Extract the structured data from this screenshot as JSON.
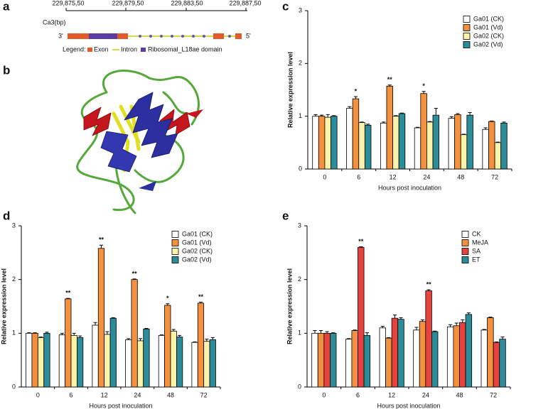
{
  "panel_labels": [
    "a",
    "b",
    "c",
    "d",
    "e"
  ],
  "gene_structure": {
    "ticks": [
      "229,875,50",
      "229,879,50",
      "229,883,50",
      "229,887,50"
    ],
    "axis_label": "Ca3(bp)",
    "end_3": "3'",
    "end_5": "5'",
    "legend_title": "Legend:",
    "legend": [
      "Exon",
      "Intron",
      "Ribosomal_L18ae domain"
    ]
  },
  "chart_data": [
    {
      "type": "bar",
      "ylabel": "Relative expression level",
      "xlabel": "Hours post inoculation",
      "categories": [
        "0",
        "6",
        "12",
        "24",
        "48",
        "72"
      ],
      "ylim": [
        0,
        3
      ],
      "yticks": [
        0,
        1,
        2,
        3
      ],
      "legend": "upper right",
      "series": [
        {
          "name": "Ga01 (CK)",
          "color": "#ffffff",
          "values": [
            1.0,
            1.15,
            0.87,
            0.78,
            0.96,
            0.75
          ],
          "errors": [
            0.03,
            0.03,
            0.02,
            0.01,
            0.03,
            0.03
          ]
        },
        {
          "name": "Ga01 (Vd)",
          "color": "#f4913f",
          "values": [
            1.0,
            1.33,
            1.57,
            1.43,
            1.03,
            0.9
          ],
          "errors": [
            0.02,
            0.04,
            0.02,
            0.04,
            0.02,
            0.01
          ],
          "significance": [
            null,
            "*",
            "**",
            "*",
            null,
            null
          ]
        },
        {
          "name": "Ga02 (CK)",
          "color": "#fbf3a8",
          "values": [
            0.98,
            0.88,
            1.0,
            0.89,
            0.65,
            0.5
          ],
          "errors": [
            0.05,
            0.01,
            0.01,
            0.01,
            0.01,
            0.01
          ]
        },
        {
          "name": "Ga02 (Vd)",
          "color": "#2b8c9a",
          "values": [
            1.0,
            0.83,
            1.05,
            1.02,
            1.02,
            0.87
          ],
          "errors": [
            0.01,
            0.02,
            0.01,
            0.13,
            0.05,
            0.02
          ]
        }
      ]
    },
    {
      "type": "bar",
      "ylabel": "Relative expression level",
      "xlabel": "Hours post inoculation",
      "categories": [
        "0",
        "6",
        "12",
        "24",
        "48",
        "72"
      ],
      "ylim": [
        0,
        3
      ],
      "yticks": [
        0,
        1,
        2,
        3
      ],
      "legend": "upper right",
      "series": [
        {
          "name": "Ga01 (CK)",
          "color": "#ffffff",
          "values": [
            1.0,
            0.97,
            1.15,
            0.88,
            0.96,
            0.83
          ],
          "errors": [
            0.01,
            0.03,
            0.05,
            0.02,
            0.01,
            0.01
          ]
        },
        {
          "name": "Ga01 (Vd)",
          "color": "#f4913f",
          "values": [
            1.0,
            1.64,
            2.58,
            2.0,
            1.52,
            1.56
          ],
          "errors": [
            0.01,
            0.01,
            0.06,
            0.01,
            0.03,
            0.02
          ],
          "significance": [
            null,
            "**",
            "**",
            "**",
            "*",
            "**"
          ]
        },
        {
          "name": "Ga02 (CK)",
          "color": "#fbf3a8",
          "values": [
            0.92,
            0.96,
            0.98,
            0.86,
            1.04,
            0.85
          ],
          "errors": [
            0.01,
            0.04,
            0.05,
            0.04,
            0.03,
            0.04
          ]
        },
        {
          "name": "Ga02 (Vd)",
          "color": "#2b8c9a",
          "values": [
            1.0,
            0.92,
            1.28,
            1.08,
            0.93,
            0.88
          ],
          "errors": [
            0.02,
            0.03,
            0.01,
            0.01,
            0.03,
            0.04
          ]
        }
      ]
    },
    {
      "type": "bar",
      "ylabel": "Relative expression level",
      "xlabel": "Hours post inoculation",
      "categories": [
        "0",
        "6",
        "12",
        "24",
        "48",
        "72"
      ],
      "ylim": [
        0,
        3
      ],
      "yticks": [
        0,
        1,
        2,
        3
      ],
      "legend": "upper right",
      "series": [
        {
          "name": "CK",
          "color": "#ffffff",
          "values": [
            1.0,
            0.89,
            1.1,
            1.06,
            1.12,
            1.06
          ],
          "errors": [
            0.05,
            0.01,
            0.03,
            0.05,
            0.04,
            0.01
          ]
        },
        {
          "name": "MeJA",
          "color": "#f4913f",
          "values": [
            1.0,
            1.05,
            0.91,
            1.22,
            1.14,
            1.29
          ],
          "errors": [
            0.05,
            0.01,
            0.01,
            0.03,
            0.05,
            0.01
          ]
        },
        {
          "name": "SA",
          "color": "#e8423f",
          "values": [
            1.0,
            2.6,
            1.28,
            1.79,
            1.2,
            0.83
          ],
          "errors": [
            0.03,
            0.01,
            0.06,
            0.02,
            0.05,
            0.01
          ],
          "significance": [
            null,
            "**",
            null,
            "**",
            null,
            null
          ]
        },
        {
          "name": "ET",
          "color": "#2b8c9a",
          "values": [
            1.0,
            0.96,
            1.26,
            1.03,
            1.35,
            0.89
          ],
          "errors": [
            0.01,
            0.05,
            0.03,
            0.01,
            0.03,
            0.04
          ]
        }
      ]
    }
  ]
}
